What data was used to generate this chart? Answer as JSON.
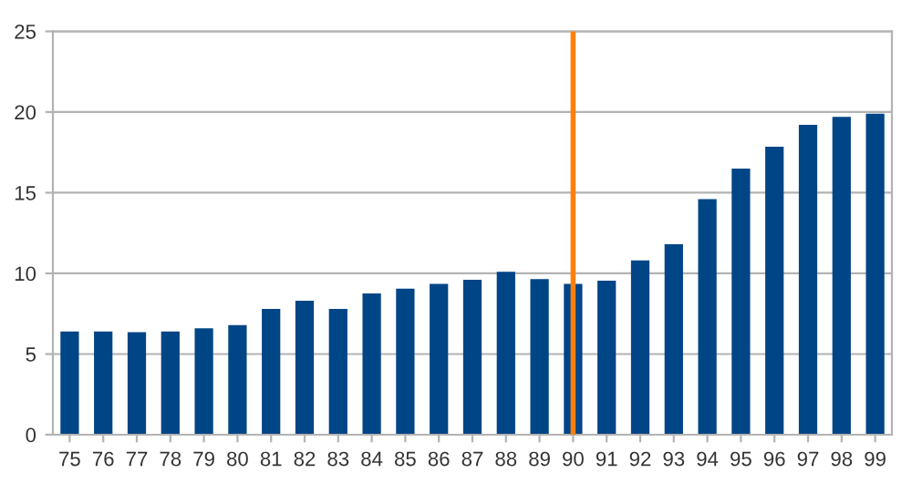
{
  "chart_data": {
    "type": "bar",
    "categories": [
      "75",
      "76",
      "77",
      "78",
      "79",
      "80",
      "81",
      "82",
      "83",
      "84",
      "85",
      "86",
      "87",
      "88",
      "89",
      "90",
      "91",
      "92",
      "93",
      "94",
      "95",
      "96",
      "97",
      "98",
      "99"
    ],
    "values": [
      6.4,
      6.4,
      6.35,
      6.4,
      6.6,
      6.8,
      7.8,
      8.3,
      7.8,
      8.75,
      9.05,
      9.35,
      9.6,
      10.1,
      9.65,
      9.35,
      9.55,
      10.8,
      11.8,
      14.6,
      16.5,
      17.85,
      19.2,
      19.7,
      19.9
    ],
    "color": "#004586",
    "ylim": [
      0,
      25
    ],
    "yticks": [
      0,
      5,
      10,
      15,
      20,
      25
    ],
    "grid": "y",
    "ref_lines": [
      {
        "axis": "x",
        "value": "90",
        "color": "#ff7f0e"
      }
    ]
  }
}
